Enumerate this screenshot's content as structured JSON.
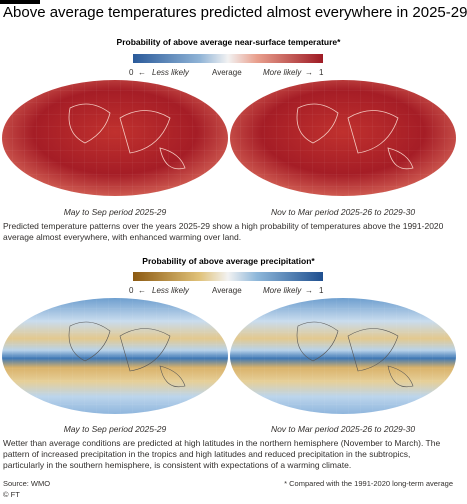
{
  "title": "Above average temperatures predicted almost everywhere in 2025-29",
  "temperature": {
    "legend_title": "Probability of above average near-surface temperature*",
    "scale_min": "0",
    "scale_max": "1",
    "less_label": "Less likely",
    "mid_label": "Average",
    "more_label": "More likely",
    "maps": [
      {
        "caption": "May to Sep period 2025-29"
      },
      {
        "caption": "Nov to Mar period 2025-26 to 2029-30"
      }
    ],
    "note": "Predicted temperature patterns over the years 2025-29 show a high probability of temperatures above the 1991-2020 average almost everywhere, with enhanced warming over land."
  },
  "precipitation": {
    "legend_title": "Probability of above average precipitation*",
    "scale_min": "0",
    "scale_max": "1",
    "less_label": "Less likely",
    "mid_label": "Average",
    "more_label": "More likely",
    "maps": [
      {
        "caption": "May to Sep period 2025-29"
      },
      {
        "caption": "Nov to Mar period 2025-26 to 2029-30"
      }
    ],
    "note": "Wetter than average conditions are predicted at high latitudes in the northern hemisphere (November to March). The pattern of increased precipitation in the tropics and high latitudes and reduced precipitation in the subtropics, particularly in the southern hemisphere, is consistent with expectations of a warming climate."
  },
  "source": "Source: WMO",
  "credit": "© FT",
  "footnote": "* Compared with the 1991-2020 long-term average"
}
